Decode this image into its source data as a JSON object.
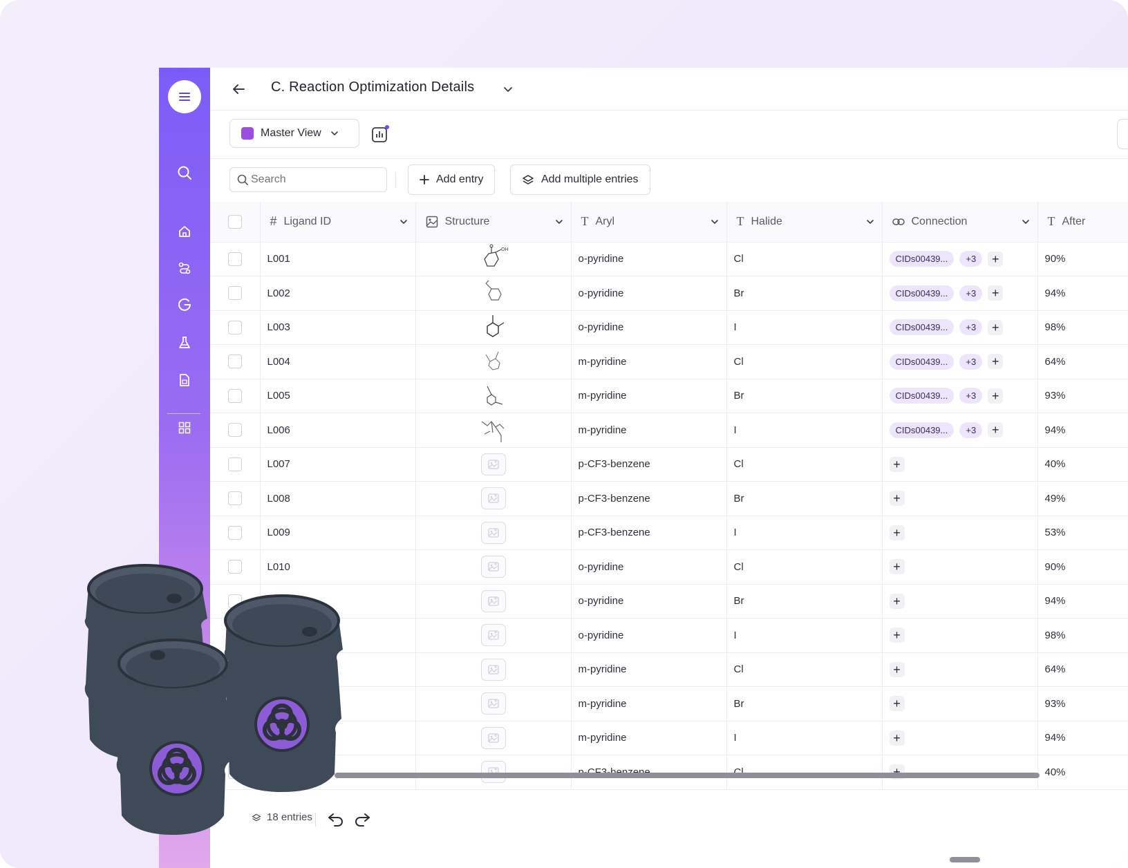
{
  "header": {
    "title": "C. Reaction Optimization Details"
  },
  "viewbar": {
    "view_label": "Master View",
    "swatch_color": "#9b4fe0"
  },
  "toolbar": {
    "search_placeholder": "Search",
    "add_entry_label": "Add entry",
    "add_multiple_label": "Add multiple entries"
  },
  "table": {
    "columns": [
      {
        "label": "Ligand ID",
        "icon": "hash-icon"
      },
      {
        "label": "Structure",
        "icon": "image-icon"
      },
      {
        "label": "Aryl",
        "icon": "text-icon"
      },
      {
        "label": "Halide",
        "icon": "text-icon"
      },
      {
        "label": "Connection",
        "icon": "link-icon"
      },
      {
        "label": "After",
        "icon": "text-icon"
      }
    ],
    "rows": [
      {
        "id": "L001",
        "aryl": "o-pyridine",
        "halide": "Cl",
        "conn": "CIDs00439...",
        "more": "+3",
        "after": "90%",
        "has_struct": true
      },
      {
        "id": "L002",
        "aryl": "o-pyridine",
        "halide": "Br",
        "conn": "CIDs00439...",
        "more": "+3",
        "after": "94%",
        "has_struct": true
      },
      {
        "id": "L003",
        "aryl": "o-pyridine",
        "halide": "I",
        "conn": "CIDs00439...",
        "more": "+3",
        "after": "98%",
        "has_struct": true
      },
      {
        "id": "L004",
        "aryl": "m-pyridine",
        "halide": "Cl",
        "conn": "CIDs00439...",
        "more": "+3",
        "after": "64%",
        "has_struct": true
      },
      {
        "id": "L005",
        "aryl": "m-pyridine",
        "halide": "Br",
        "conn": "CIDs00439...",
        "more": "+3",
        "after": "93%",
        "has_struct": true
      },
      {
        "id": "L006",
        "aryl": "m-pyridine",
        "halide": "I",
        "conn": "CIDs00439...",
        "more": "+3",
        "after": "94%",
        "has_struct": true
      },
      {
        "id": "L007",
        "aryl": "p-CF3-benzene",
        "halide": "Cl",
        "conn": "",
        "more": "",
        "after": "40%",
        "has_struct": false
      },
      {
        "id": "L008",
        "aryl": "p-CF3-benzene",
        "halide": "Br",
        "conn": "",
        "more": "",
        "after": "49%",
        "has_struct": false
      },
      {
        "id": "L009",
        "aryl": "p-CF3-benzene",
        "halide": "I",
        "conn": "",
        "more": "",
        "after": "53%",
        "has_struct": false
      },
      {
        "id": "L010",
        "aryl": "o-pyridine",
        "halide": "Cl",
        "conn": "",
        "more": "",
        "after": "90%",
        "has_struct": false
      },
      {
        "id": "",
        "aryl": "o-pyridine",
        "halide": "Br",
        "conn": "",
        "more": "",
        "after": "94%",
        "has_struct": false
      },
      {
        "id": "",
        "aryl": "o-pyridine",
        "halide": "I",
        "conn": "",
        "more": "",
        "after": "98%",
        "has_struct": false
      },
      {
        "id": "",
        "aryl": "m-pyridine",
        "halide": "Cl",
        "conn": "",
        "more": "",
        "after": "64%",
        "has_struct": false
      },
      {
        "id": "",
        "aryl": "m-pyridine",
        "halide": "Br",
        "conn": "",
        "more": "",
        "after": "93%",
        "has_struct": false
      },
      {
        "id": "",
        "aryl": "m-pyridine",
        "halide": "I",
        "conn": "",
        "more": "",
        "after": "94%",
        "has_struct": false
      },
      {
        "id": "",
        "aryl": "p-CF3-benzene",
        "halide": "Cl",
        "conn": "",
        "more": "",
        "after": "40%",
        "has_struct": false
      }
    ]
  },
  "footer": {
    "entries_label": "18 entries"
  },
  "sidebar": {
    "icons": [
      "menu-icon",
      "search-icon",
      "home-icon",
      "route-icon",
      "g-logo-icon",
      "flask-icon",
      "document-icon",
      "grid-icon"
    ]
  },
  "decor": {
    "barrel_color": "#3f4a58",
    "hazard_color": "#8b5cd6"
  }
}
